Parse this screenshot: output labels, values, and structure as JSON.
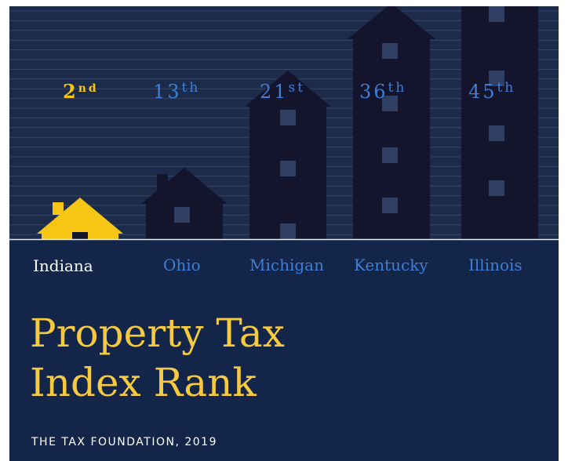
{
  "states": [
    {
      "name": "Indiana",
      "rank": 2,
      "suffix": "nd"
    },
    {
      "name": "Ohio",
      "rank": 13,
      "suffix": "th"
    },
    {
      "name": "Michigan",
      "rank": 21,
      "suffix": "st"
    },
    {
      "name": "Kentucky",
      "rank": 36,
      "suffix": "th"
    },
    {
      "name": "Illinois",
      "rank": 45,
      "suffix": "th"
    }
  ],
  "title": [
    "Property Tax",
    "Index Rank"
  ],
  "source": "THE TAX FOUNDATION, 2019"
}
